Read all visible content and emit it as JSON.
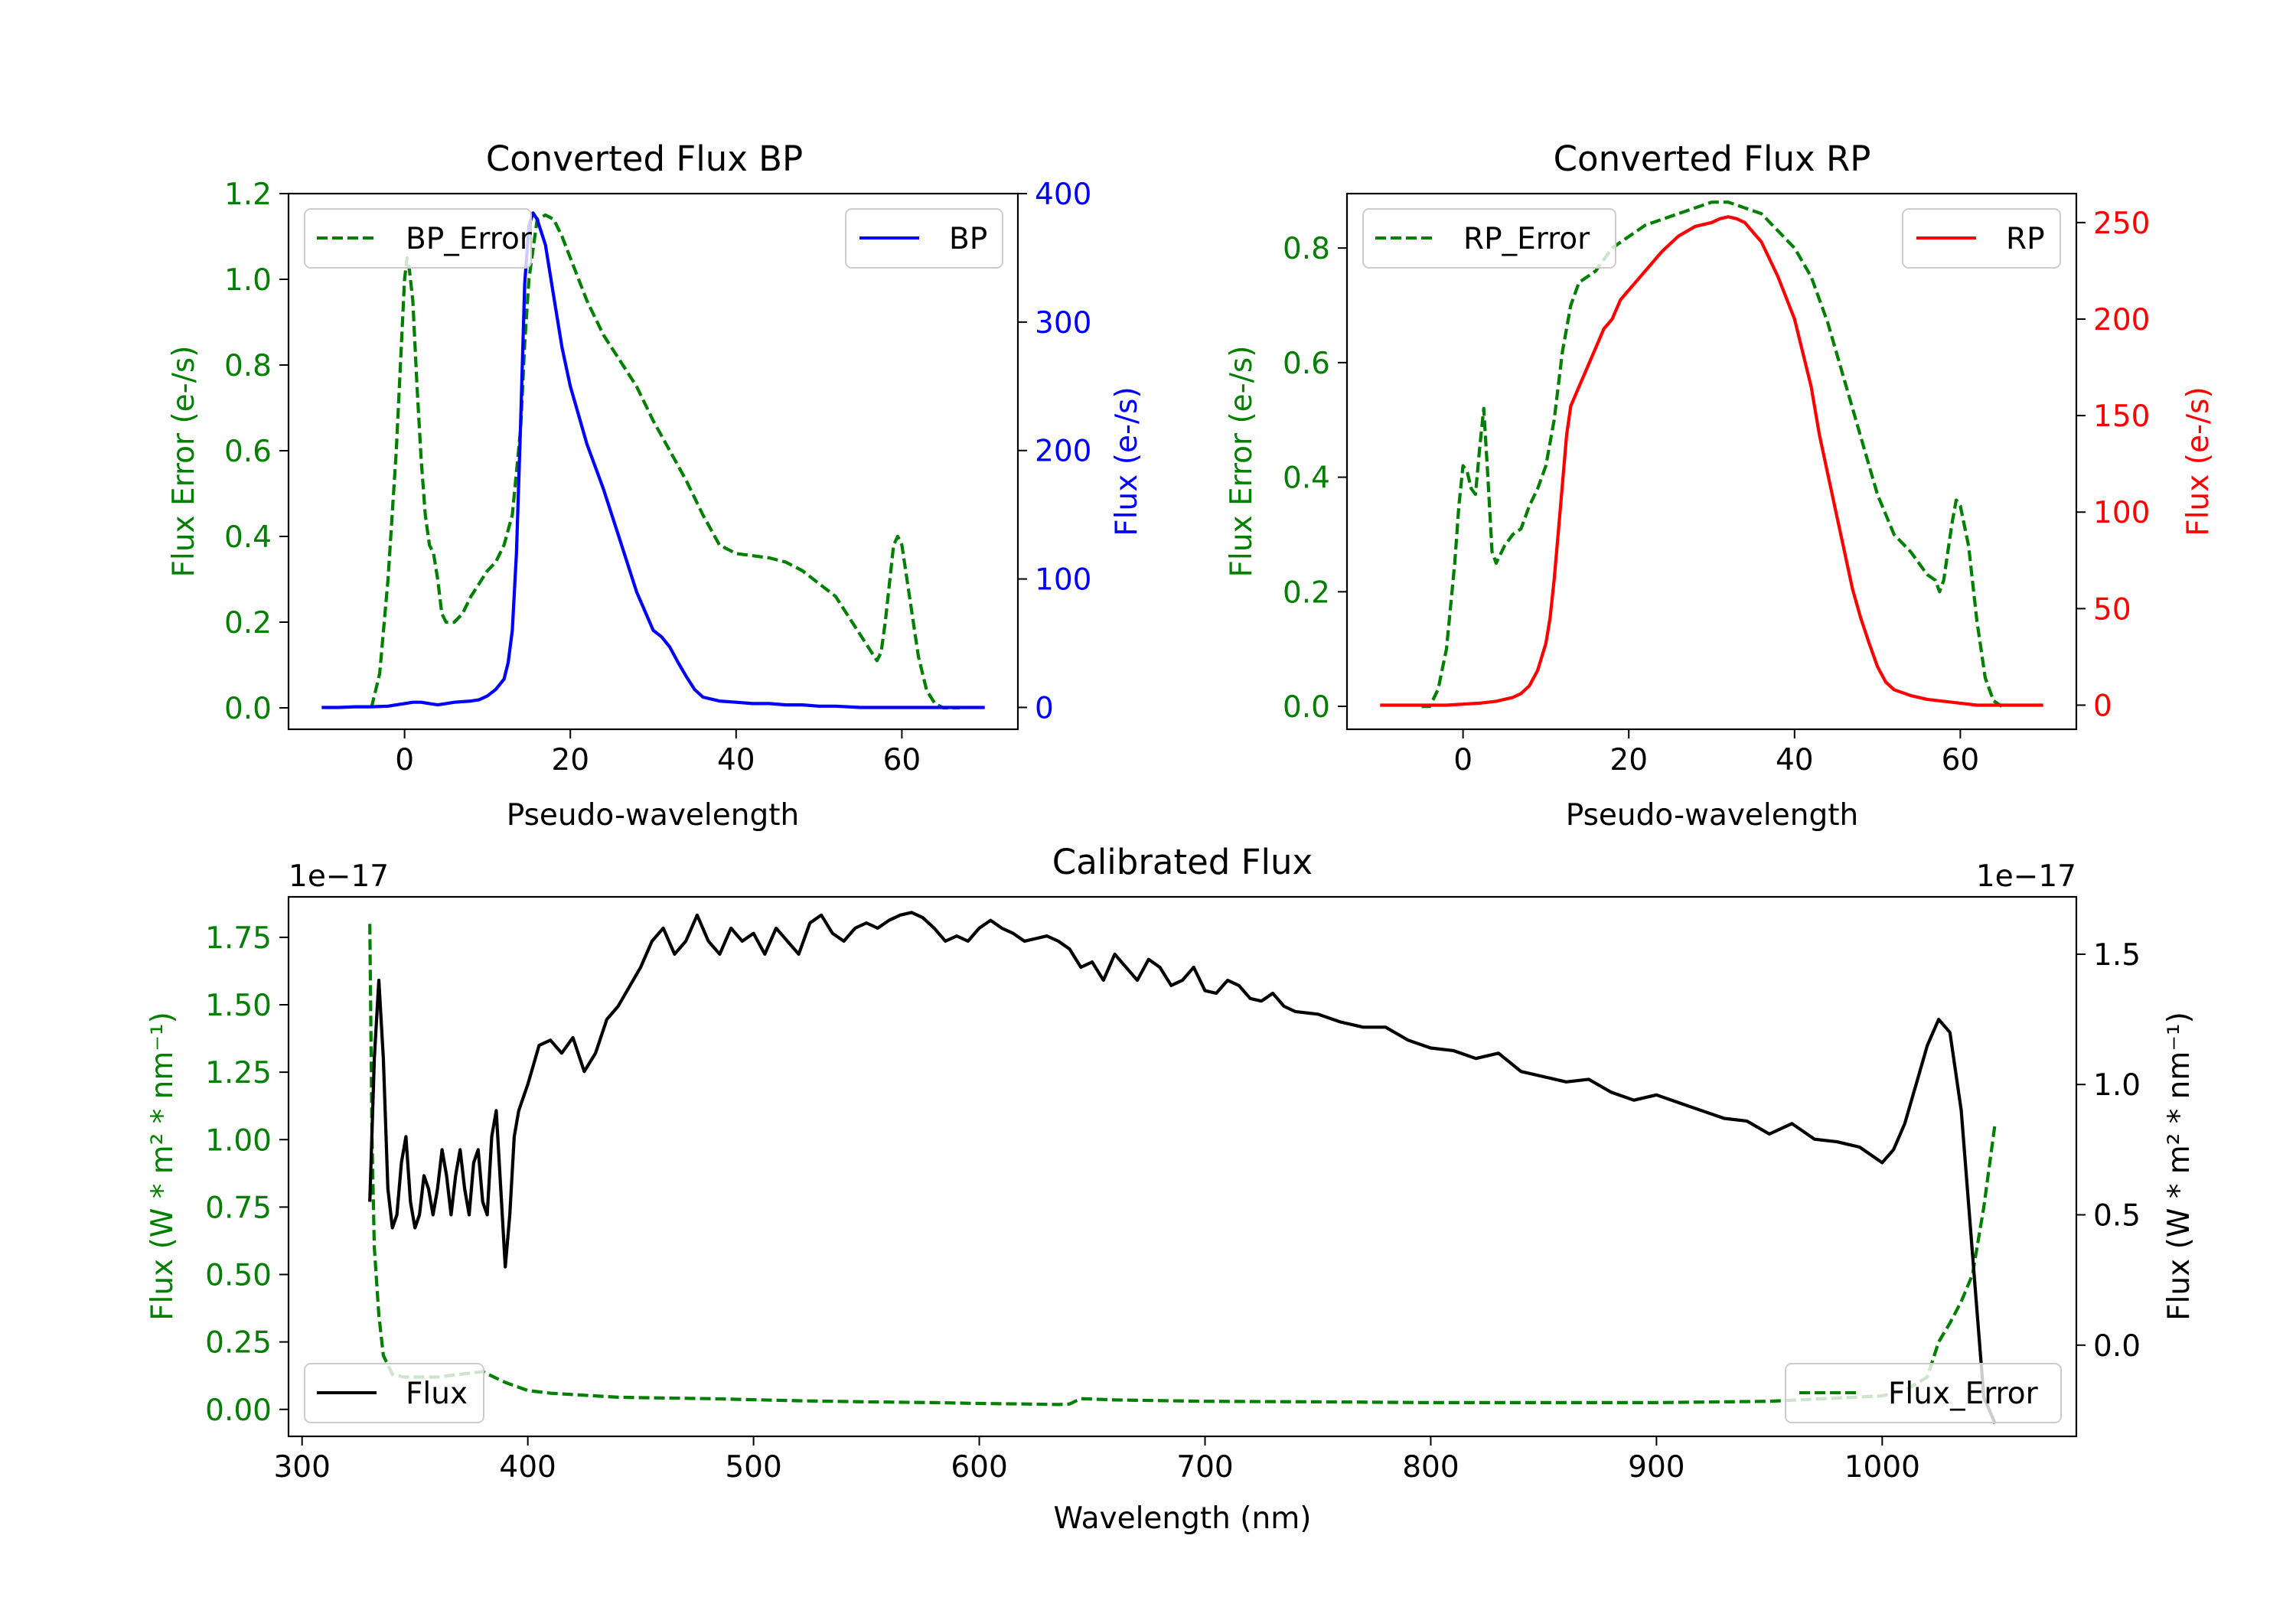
{
  "figure_colors": {
    "error": "#007f00",
    "bp": "#0000ff",
    "rp": "#ff0000",
    "flux": "#000000"
  },
  "chart_data": [
    {
      "id": "bp",
      "type": "line",
      "title": "Converted Flux BP",
      "xlabel": "Pseudo-wavelength",
      "ylabel_left": "Flux Error (e-/s)",
      "ylabel_right": "Flux (e-/s)",
      "xlim": [
        -14,
        74
      ],
      "ylim_left": [
        -0.05,
        1.2
      ],
      "ylim_right": [
        -17,
        400
      ],
      "xticks": [
        0,
        20,
        40,
        60
      ],
      "yticks_left": [
        0.0,
        0.2,
        0.4,
        0.6,
        0.8,
        1.0,
        1.2
      ],
      "yticks_right": [
        0,
        100,
        200,
        300,
        400
      ],
      "legend_left": "BP_Error",
      "legend_right": "BP",
      "series": [
        {
          "name": "BP_Error",
          "axis": "left",
          "style": "dashed",
          "color": "#007f00",
          "x": [
            -4,
            -3,
            -2,
            -1,
            -0.5,
            0,
            0.3,
            0.6,
            1,
            1.5,
            2,
            2.5,
            3,
            3.5,
            4,
            4.5,
            5,
            6,
            7,
            8,
            9,
            10,
            11,
            12,
            13,
            14,
            14.5,
            15,
            16,
            17,
            18,
            19,
            20,
            22,
            24,
            26,
            28,
            30,
            32,
            34,
            36,
            38,
            40,
            42,
            44,
            46,
            48,
            50,
            52,
            54,
            56,
            57,
            57.5,
            58,
            59,
            59.5,
            60,
            61,
            62,
            63,
            64,
            65,
            67
          ],
          "y": [
            0.0,
            0.08,
            0.3,
            0.6,
            0.8,
            1.0,
            1.05,
            1.02,
            0.95,
            0.75,
            0.58,
            0.45,
            0.38,
            0.36,
            0.3,
            0.22,
            0.2,
            0.2,
            0.22,
            0.26,
            0.29,
            0.32,
            0.34,
            0.38,
            0.45,
            0.65,
            0.85,
            1.0,
            1.14,
            1.15,
            1.14,
            1.1,
            1.05,
            0.95,
            0.87,
            0.81,
            0.75,
            0.67,
            0.6,
            0.53,
            0.45,
            0.38,
            0.36,
            0.355,
            0.35,
            0.34,
            0.32,
            0.29,
            0.26,
            0.2,
            0.14,
            0.11,
            0.13,
            0.2,
            0.38,
            0.4,
            0.38,
            0.25,
            0.12,
            0.04,
            0.01,
            0.0,
            0.0
          ]
        },
        {
          "name": "BP",
          "axis": "right",
          "style": "solid",
          "color": "#0000ff",
          "x": [
            -10,
            -8,
            -6,
            -4,
            -2,
            0,
            1,
            2,
            3,
            4,
            5,
            6,
            8,
            9,
            10,
            11,
            12,
            12.5,
            13,
            13.5,
            14,
            14.5,
            15,
            15.5,
            16,
            17,
            18,
            19,
            20,
            22,
            24,
            26,
            28,
            30,
            31,
            32,
            33,
            34,
            35,
            36,
            38,
            40,
            42,
            44,
            46,
            48,
            50,
            52,
            55,
            58,
            60,
            62,
            64,
            66,
            68,
            70
          ],
          "y": [
            0,
            0,
            0.5,
            0.5,
            1,
            3,
            4,
            4,
            3,
            2,
            3,
            4,
            5,
            6,
            9,
            14,
            22,
            35,
            60,
            120,
            220,
            330,
            375,
            385,
            380,
            360,
            320,
            280,
            250,
            205,
            170,
            130,
            90,
            60,
            55,
            47,
            35,
            24,
            14,
            8,
            5,
            4,
            3,
            3,
            2,
            2,
            1,
            1,
            0,
            0,
            0,
            0,
            0,
            0,
            0,
            0
          ]
        }
      ]
    },
    {
      "id": "rp",
      "type": "line",
      "title": "Converted Flux RP",
      "xlabel": "Pseudo-wavelength",
      "ylabel_left": "Flux Error (e-/s)",
      "ylabel_right": "Flux (e-/s)",
      "xlim": [
        -14,
        74
      ],
      "ylim_left": [
        -0.04,
        0.895
      ],
      "ylim_right": [
        -12.5,
        265
      ],
      "xticks": [
        0,
        20,
        40,
        60
      ],
      "yticks_left": [
        0.0,
        0.2,
        0.4,
        0.6,
        0.8
      ],
      "yticks_right": [
        0,
        50,
        100,
        150,
        200,
        250
      ],
      "legend_left": "RP_Error",
      "legend_right": "RP",
      "series": [
        {
          "name": "RP_Error",
          "axis": "left",
          "style": "dashed",
          "color": "#007f00",
          "x": [
            -5,
            -4,
            -3,
            -2,
            -1,
            -0.5,
            0,
            0.5,
            1,
            1.5,
            2,
            2.5,
            3,
            3.5,
            4,
            5,
            6,
            7,
            8,
            9,
            10,
            11,
            12,
            13,
            14,
            15,
            16,
            17,
            18,
            19,
            20,
            22,
            24,
            26,
            28,
            30,
            32,
            34,
            36,
            38,
            40,
            42,
            44,
            46,
            48,
            50,
            52,
            54,
            56,
            57,
            57.5,
            58,
            58.5,
            59,
            59.5,
            60,
            61,
            62,
            63,
            64,
            65
          ],
          "y": [
            0.0,
            0.0,
            0.03,
            0.1,
            0.25,
            0.35,
            0.42,
            0.41,
            0.38,
            0.37,
            0.45,
            0.52,
            0.4,
            0.27,
            0.25,
            0.28,
            0.3,
            0.31,
            0.35,
            0.38,
            0.42,
            0.5,
            0.62,
            0.7,
            0.74,
            0.75,
            0.76,
            0.78,
            0.8,
            0.81,
            0.82,
            0.84,
            0.85,
            0.86,
            0.87,
            0.88,
            0.88,
            0.87,
            0.86,
            0.83,
            0.8,
            0.75,
            0.67,
            0.57,
            0.47,
            0.37,
            0.3,
            0.27,
            0.23,
            0.22,
            0.2,
            0.22,
            0.27,
            0.32,
            0.36,
            0.35,
            0.28,
            0.15,
            0.05,
            0.01,
            0.0
          ]
        },
        {
          "name": "RP",
          "axis": "right",
          "style": "solid",
          "color": "#ff0000",
          "x": [
            -10,
            -6,
            -2,
            0,
            2,
            4,
            6,
            7,
            8,
            9,
            10,
            10.5,
            11,
            11.5,
            12,
            12.5,
            13,
            14,
            15,
            16,
            17,
            18,
            19,
            20,
            22,
            24,
            26,
            28,
            30,
            31,
            32,
            33,
            34,
            35,
            36,
            38,
            40,
            42,
            43,
            44,
            45,
            46,
            47,
            48,
            49,
            50,
            51,
            52,
            54,
            56,
            58,
            60,
            62,
            64,
            66,
            68,
            70
          ],
          "y": [
            0,
            0,
            0,
            0.5,
            1,
            2,
            4,
            6,
            10,
            18,
            32,
            45,
            65,
            90,
            115,
            140,
            155,
            165,
            175,
            185,
            195,
            200,
            210,
            215,
            225,
            235,
            243,
            248,
            250,
            252,
            253,
            252,
            250,
            245,
            240,
            222,
            200,
            165,
            140,
            120,
            100,
            80,
            60,
            45,
            32,
            20,
            12,
            8,
            5,
            3,
            2,
            1,
            0,
            0,
            0,
            0,
            0
          ]
        }
      ]
    },
    {
      "id": "cal",
      "type": "line",
      "title": "Calibrated Flux",
      "xlabel": "Wavelength (nm)",
      "ylabel_left": "Flux (W * m² * nm⁻¹)",
      "ylabel_right": "Flux (W * m² * nm⁻¹)",
      "offset_left": "1e−17",
      "offset_right": "1e−17",
      "xlim": [
        294,
        1086
      ],
      "ylim_left": [
        -0.1,
        1.9
      ],
      "ylim_right": [
        -0.35,
        1.72
      ],
      "xticks": [
        300,
        400,
        500,
        600,
        700,
        800,
        900,
        1000
      ],
      "yticks_left": [
        0.0,
        0.25,
        0.5,
        0.75,
        1.0,
        1.25,
        1.5,
        1.75
      ],
      "ytick_labels_left": [
        "0.00",
        "0.25",
        "0.50",
        "0.75",
        "1.00",
        "1.25",
        "1.50",
        "1.75"
      ],
      "yticks_right": [
        0.0,
        0.5,
        1.0,
        1.5
      ],
      "ytick_labels_right": [
        "0.0",
        "0.5",
        "1.0",
        "1.5"
      ],
      "legend_left": "Flux",
      "legend_right": "Flux_Error",
      "series": [
        {
          "name": "Flux_Error",
          "axis": "left",
          "style": "dashed",
          "color": "#007f00",
          "x": [
            330,
            331,
            332,
            334,
            336,
            340,
            345,
            350,
            360,
            370,
            380,
            385,
            390,
            400,
            410,
            420,
            430,
            440,
            460,
            480,
            500,
            520,
            550,
            580,
            600,
            620,
            635,
            640,
            645,
            660,
            700,
            750,
            800,
            850,
            900,
            950,
            1000,
            1010,
            1020,
            1025,
            1030,
            1035,
            1040,
            1045,
            1050
          ],
          "y": [
            1.8,
            1.0,
            0.6,
            0.35,
            0.2,
            0.13,
            0.12,
            0.12,
            0.12,
            0.13,
            0.14,
            0.12,
            0.1,
            0.07,
            0.06,
            0.055,
            0.05,
            0.045,
            0.042,
            0.04,
            0.036,
            0.032,
            0.028,
            0.025,
            0.022,
            0.02,
            0.018,
            0.02,
            0.04,
            0.035,
            0.03,
            0.028,
            0.025,
            0.025,
            0.025,
            0.03,
            0.05,
            0.07,
            0.12,
            0.25,
            0.32,
            0.4,
            0.5,
            0.75,
            1.06
          ]
        },
        {
          "name": "Flux",
          "axis": "right",
          "style": "solid",
          "color": "#000000",
          "x": [
            330,
            332,
            334,
            336,
            338,
            340,
            342,
            344,
            346,
            348,
            350,
            352,
            354,
            356,
            358,
            360,
            362,
            364,
            366,
            368,
            370,
            372,
            374,
            376,
            378,
            380,
            382,
            384,
            386,
            388,
            390,
            392,
            394,
            396,
            398,
            400,
            405,
            410,
            415,
            420,
            425,
            430,
            435,
            440,
            450,
            455,
            460,
            465,
            470,
            475,
            480,
            485,
            490,
            495,
            500,
            505,
            510,
            515,
            520,
            525,
            530,
            535,
            540,
            545,
            550,
            555,
            560,
            565,
            570,
            575,
            580,
            585,
            590,
            595,
            600,
            605,
            610,
            615,
            620,
            625,
            630,
            635,
            640,
            645,
            650,
            655,
            660,
            665,
            670,
            675,
            680,
            685,
            690,
            695,
            700,
            705,
            710,
            715,
            720,
            725,
            730,
            735,
            740,
            750,
            760,
            770,
            780,
            790,
            800,
            810,
            820,
            830,
            840,
            850,
            860,
            870,
            880,
            890,
            900,
            910,
            920,
            930,
            940,
            950,
            960,
            970,
            980,
            990,
            1000,
            1005,
            1010,
            1015,
            1020,
            1025,
            1030,
            1035,
            1040,
            1045,
            1050
          ],
          "y": [
            0.55,
            1.1,
            1.4,
            1.1,
            0.6,
            0.45,
            0.5,
            0.7,
            0.8,
            0.55,
            0.45,
            0.5,
            0.65,
            0.6,
            0.5,
            0.6,
            0.75,
            0.65,
            0.5,
            0.65,
            0.75,
            0.6,
            0.5,
            0.7,
            0.75,
            0.55,
            0.5,
            0.8,
            0.9,
            0.6,
            0.3,
            0.5,
            0.8,
            0.9,
            0.95,
            1.0,
            1.15,
            1.17,
            1.12,
            1.18,
            1.05,
            1.12,
            1.25,
            1.3,
            1.45,
            1.55,
            1.6,
            1.5,
            1.55,
            1.65,
            1.55,
            1.5,
            1.6,
            1.55,
            1.58,
            1.5,
            1.6,
            1.55,
            1.5,
            1.62,
            1.65,
            1.58,
            1.55,
            1.6,
            1.62,
            1.6,
            1.63,
            1.65,
            1.66,
            1.64,
            1.6,
            1.55,
            1.57,
            1.55,
            1.6,
            1.63,
            1.6,
            1.58,
            1.55,
            1.56,
            1.57,
            1.55,
            1.52,
            1.45,
            1.47,
            1.4,
            1.5,
            1.45,
            1.4,
            1.48,
            1.45,
            1.38,
            1.4,
            1.45,
            1.36,
            1.35,
            1.4,
            1.38,
            1.33,
            1.32,
            1.35,
            1.3,
            1.28,
            1.27,
            1.24,
            1.22,
            1.22,
            1.17,
            1.14,
            1.13,
            1.1,
            1.12,
            1.05,
            1.03,
            1.01,
            1.02,
            0.97,
            0.94,
            0.96,
            0.93,
            0.9,
            0.87,
            0.86,
            0.81,
            0.85,
            0.79,
            0.78,
            0.76,
            0.7,
            0.75,
            0.85,
            1.0,
            1.15,
            1.25,
            1.2,
            0.9,
            0.35,
            -0.2,
            -0.3
          ]
        }
      ]
    }
  ]
}
